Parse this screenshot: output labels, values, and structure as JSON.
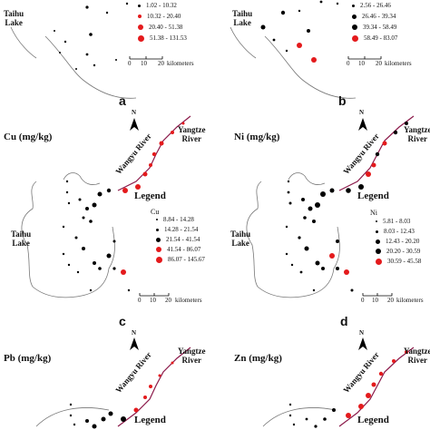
{
  "panels": [
    {
      "id": "a",
      "label": "a",
      "title": "",
      "legend_var": "",
      "lake_label": [
        "Taihu",
        "Lake"
      ],
      "classes": [
        "1.02 - 10.32",
        "10.32 - 20.40",
        "20.40 - 51.38",
        "51.38 - 131.53"
      ],
      "scale": {
        "ticks": [
          "0",
          "10",
          "20"
        ],
        "unit": "kilometers"
      }
    },
    {
      "id": "b",
      "label": "b",
      "title": "",
      "legend_var": "",
      "lake_label": [
        "Taihu",
        "Lake"
      ],
      "classes": [
        "2.56 - 26.46",
        "26.46 - 39.34",
        "39.34 - 58.49",
        "58.49 - 83.07"
      ],
      "scale": {
        "ticks": [
          "0",
          "10",
          "20"
        ],
        "unit": "kilometers"
      }
    },
    {
      "id": "c",
      "label": "c",
      "title": "Cu (mg/kg)",
      "legend_var": "Cu",
      "lake_label": [
        "Taihu",
        "Lake"
      ],
      "river_label": [
        "Yangtze",
        "River"
      ],
      "canal_label": "Wangyu River",
      "north": "N",
      "legend_title": "Legend",
      "classes": [
        "8.84 - 14.28",
        "14.28 - 21.54",
        "21.54 - 41.54",
        "41.54 - 86.07",
        "86.07 - 145.67"
      ],
      "scale": {
        "ticks": [
          "0",
          "10",
          "20"
        ],
        "unit": "kilometers"
      }
    },
    {
      "id": "d",
      "label": "d",
      "title": "Ni (mg/kg)",
      "legend_var": "Ni",
      "lake_label": [
        "Taihu",
        "Lake"
      ],
      "river_label": [
        "Yangtze",
        "River"
      ],
      "canal_label": "Wangyu River",
      "north": "N",
      "legend_title": "Legend",
      "classes": [
        "5.81 - 8.03",
        "8.03 - 12.43",
        "12.43 - 20.20",
        "20.20 - 30.59",
        "30.59 - 45.58"
      ],
      "scale": {
        "ticks": [
          "0",
          "10",
          "20"
        ],
        "unit": "kilometers"
      }
    },
    {
      "id": "e",
      "label": "",
      "title": "Pb (mg/kg)",
      "legend_var": "",
      "lake_label": [],
      "river_label": [
        "Yangtze",
        "River"
      ],
      "canal_label": "Wangyu River",
      "north": "N",
      "legend_title": "Legend",
      "classes": [],
      "scale": {
        "ticks": [],
        "unit": ""
      }
    },
    {
      "id": "f",
      "label": "",
      "title": "Zn (mg/kg)",
      "legend_var": "",
      "lake_label": [],
      "river_label": [
        "Yangtze",
        "River"
      ],
      "canal_label": "Wangyu River",
      "north": "N",
      "legend_title": "Legend",
      "classes": [],
      "scale": {
        "ticks": [],
        "unit": ""
      }
    }
  ],
  "colors": {
    "low": "#000000",
    "high": "#e41a1c",
    "outline": "#555555",
    "canal": "#8b1a4a"
  }
}
